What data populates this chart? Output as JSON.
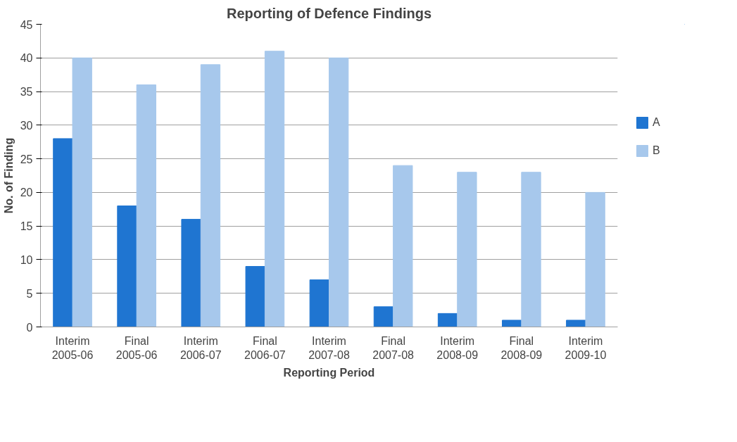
{
  "chart_data": {
    "type": "bar",
    "title": "Reporting of Defence Findings",
    "xlabel": "Reporting Period",
    "ylabel": "No. of Finding",
    "categories": [
      "Interim 2005-06",
      "Final 2005-06",
      "Interim 2006-07",
      "Final 2006-07",
      "Interim 2007-08",
      "Final 2007-08",
      "Interim 2008-09",
      "Final 2008-09",
      "Interim 2009-10"
    ],
    "series": [
      {
        "name": "A",
        "color": "#1f75d1",
        "values": [
          28,
          18,
          16,
          9,
          7,
          3,
          2,
          1,
          1
        ]
      },
      {
        "name": "B",
        "color": "#a7c8ec",
        "values": [
          40,
          36,
          39,
          41,
          40,
          24,
          23,
          23,
          20
        ]
      }
    ],
    "ylim": [
      0,
      45
    ],
    "yticks": [
      0,
      5,
      10,
      15,
      20,
      25,
      30,
      35,
      40,
      45
    ],
    "grid": "y",
    "legend": "right"
  }
}
